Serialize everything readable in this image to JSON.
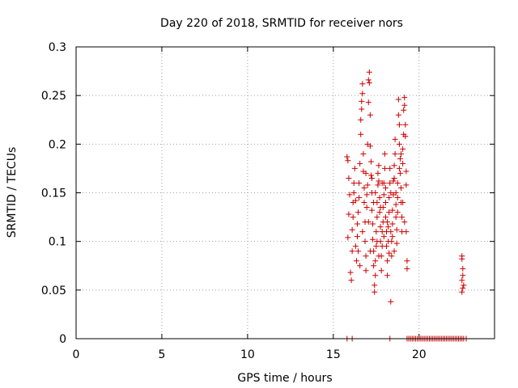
{
  "chart_data": {
    "type": "scatter",
    "title": "Day 220 of 2018, SRMTID for receiver nors",
    "xlabel": "GPS time / hours",
    "ylabel": "SRMTID / TECUs",
    "xlim": [
      0,
      24.4
    ],
    "ylim": [
      0,
      0.3
    ],
    "xticks": [
      0,
      5,
      10,
      15,
      20
    ],
    "xtick_labels": [
      "0",
      "5",
      "10",
      "15",
      "20"
    ],
    "yticks": [
      0,
      0.05,
      0.1,
      0.15,
      0.2,
      0.25,
      0.3
    ],
    "ytick_labels": [
      "0",
      "0.05",
      "0.1",
      "0.15",
      "0.2",
      "0.25",
      "0.3"
    ],
    "grid": true,
    "marker": "+",
    "color": "#cc0000",
    "series": [
      {
        "name": "SRMTID",
        "points": [
          [
            15.8,
            0.187
          ],
          [
            15.85,
            0.183
          ],
          [
            15.9,
            0.165
          ],
          [
            15.95,
            0.148
          ],
          [
            15.9,
            0.128
          ],
          [
            15.85,
            0.104
          ],
          [
            16.0,
            0.068
          ],
          [
            16.05,
            0.06
          ],
          [
            16.1,
            0.09
          ],
          [
            16.1,
            0.112
          ],
          [
            16.15,
            0.125
          ],
          [
            16.15,
            0.14
          ],
          [
            16.2,
            0.15
          ],
          [
            16.2,
            0.16
          ],
          [
            16.25,
            0.175
          ],
          [
            16.3,
            0.095
          ],
          [
            16.35,
            0.08
          ],
          [
            16.4,
            0.105
          ],
          [
            16.4,
            0.118
          ],
          [
            16.45,
            0.13
          ],
          [
            16.5,
            0.145
          ],
          [
            16.5,
            0.16
          ],
          [
            16.55,
            0.18
          ],
          [
            16.6,
            0.21
          ],
          [
            16.6,
            0.225
          ],
          [
            16.65,
            0.236
          ],
          [
            16.65,
            0.244
          ],
          [
            16.7,
            0.252
          ],
          [
            16.7,
            0.262
          ],
          [
            16.75,
            0.19
          ],
          [
            16.75,
            0.172
          ],
          [
            16.8,
            0.155
          ],
          [
            16.8,
            0.14
          ],
          [
            16.85,
            0.12
          ],
          [
            16.85,
            0.1
          ],
          [
            16.9,
            0.085
          ],
          [
            16.9,
            0.07
          ],
          [
            16.95,
            0.135
          ],
          [
            16.95,
            0.148
          ],
          [
            17.0,
            0.158
          ],
          [
            17.0,
            0.2
          ],
          [
            17.05,
            0.243
          ],
          [
            17.05,
            0.266
          ],
          [
            17.1,
            0.274
          ],
          [
            17.1,
            0.263
          ],
          [
            17.15,
            0.23
          ],
          [
            17.15,
            0.198
          ],
          [
            17.2,
            0.182
          ],
          [
            17.2,
            0.168
          ],
          [
            17.25,
            0.15
          ],
          [
            17.25,
            0.132
          ],
          [
            17.3,
            0.118
          ],
          [
            17.3,
            0.102
          ],
          [
            17.35,
            0.09
          ],
          [
            17.35,
            0.075
          ],
          [
            17.4,
            0.055
          ],
          [
            17.4,
            0.048
          ],
          [
            17.45,
            0.065
          ],
          [
            17.45,
            0.08
          ],
          [
            17.5,
            0.095
          ],
          [
            17.5,
            0.11
          ],
          [
            17.55,
            0.125
          ],
          [
            17.55,
            0.14
          ],
          [
            17.6,
            0.158
          ],
          [
            17.6,
            0.17
          ],
          [
            17.65,
            0.178
          ],
          [
            17.65,
            0.162
          ],
          [
            17.7,
            0.145
          ],
          [
            17.7,
            0.13
          ],
          [
            17.75,
            0.115
          ],
          [
            17.75,
            0.1
          ],
          [
            17.8,
            0.085
          ],
          [
            17.8,
            0.07
          ],
          [
            17.85,
            0.095
          ],
          [
            17.85,
            0.11
          ],
          [
            17.9,
            0.12
          ],
          [
            17.9,
            0.135
          ],
          [
            17.95,
            0.148
          ],
          [
            17.95,
            0.16
          ],
          [
            18.0,
            0.175
          ],
          [
            18.0,
            0.19
          ],
          [
            18.05,
            0.14
          ],
          [
            18.05,
            0.125
          ],
          [
            18.1,
            0.11
          ],
          [
            18.1,
            0.095
          ],
          [
            18.15,
            0.08
          ],
          [
            18.15,
            0.065
          ],
          [
            18.2,
            0.1
          ],
          [
            18.2,
            0.115
          ],
          [
            18.25,
            0.13
          ],
          [
            18.25,
            0.145
          ],
          [
            18.3,
            0.16
          ],
          [
            18.3,
            0.175
          ],
          [
            18.35,
            0.15
          ],
          [
            18.35,
            0.038
          ],
          [
            18.4,
            0.085
          ],
          [
            18.4,
            0.1
          ],
          [
            18.45,
            0.118
          ],
          [
            18.45,
            0.132
          ],
          [
            18.5,
            0.148
          ],
          [
            18.5,
            0.162
          ],
          [
            18.55,
            0.178
          ],
          [
            18.55,
            0.165
          ],
          [
            18.6,
            0.19
          ],
          [
            18.6,
            0.205
          ],
          [
            18.65,
            0.138
          ],
          [
            18.65,
            0.125
          ],
          [
            18.7,
            0.112
          ],
          [
            18.7,
            0.098
          ],
          [
            18.75,
            0.145
          ],
          [
            18.75,
            0.16
          ],
          [
            18.8,
            0.23
          ],
          [
            18.8,
            0.246
          ],
          [
            18.85,
            0.22
          ],
          [
            18.85,
            0.2
          ],
          [
            18.9,
            0.185
          ],
          [
            18.9,
            0.17
          ],
          [
            18.95,
            0.155
          ],
          [
            18.95,
            0.14
          ],
          [
            19.0,
            0.125
          ],
          [
            19.0,
            0.11
          ],
          [
            19.05,
            0.18
          ],
          [
            19.05,
            0.195
          ],
          [
            19.1,
            0.21
          ],
          [
            19.1,
            0.235
          ],
          [
            19.15,
            0.24
          ],
          [
            19.15,
            0.248
          ],
          [
            19.2,
            0.22
          ],
          [
            19.2,
            0.208
          ],
          [
            19.25,
            0.172
          ],
          [
            19.25,
            0.158
          ],
          [
            19.3,
            0.08
          ],
          [
            19.3,
            0.072
          ],
          [
            16.3,
            0.142
          ],
          [
            16.45,
            0.09
          ],
          [
            16.55,
            0.075
          ],
          [
            16.7,
            0.11
          ],
          [
            16.9,
            0.17
          ],
          [
            17.05,
            0.12
          ],
          [
            17.15,
            0.09
          ],
          [
            17.25,
            0.165
          ],
          [
            17.35,
            0.14
          ],
          [
            17.45,
            0.15
          ],
          [
            17.55,
            0.1
          ],
          [
            17.65,
            0.085
          ],
          [
            17.75,
            0.135
          ],
          [
            17.85,
            0.16
          ],
          [
            17.95,
            0.105
          ],
          [
            18.05,
            0.155
          ],
          [
            18.15,
            0.12
          ],
          [
            18.25,
            0.088
          ],
          [
            18.35,
            0.11
          ],
          [
            18.45,
            0.105
          ],
          [
            18.55,
            0.09
          ],
          [
            18.65,
            0.15
          ],
          [
            18.75,
            0.13
          ],
          [
            18.85,
            0.175
          ],
          [
            18.95,
            0.19
          ],
          [
            19.05,
            0.14
          ],
          [
            19.15,
            0.12
          ],
          [
            19.25,
            0.11
          ],
          [
            22.5,
            0.085
          ],
          [
            22.5,
            0.082
          ],
          [
            22.55,
            0.072
          ],
          [
            22.55,
            0.065
          ],
          [
            22.5,
            0.06
          ],
          [
            22.55,
            0.052
          ],
          [
            22.5,
            0.048
          ],
          [
            22.6,
            0.055
          ],
          [
            15.8,
            0
          ],
          [
            16.1,
            0
          ],
          [
            18.3,
            0
          ],
          [
            19.3,
            0
          ],
          [
            19.4,
            0
          ],
          [
            19.5,
            0
          ],
          [
            19.6,
            0
          ],
          [
            19.7,
            0
          ],
          [
            19.8,
            0
          ],
          [
            19.9,
            0
          ],
          [
            20.0,
            0
          ],
          [
            20.1,
            0
          ],
          [
            20.2,
            0
          ],
          [
            20.3,
            0
          ],
          [
            20.4,
            0
          ],
          [
            20.5,
            0
          ],
          [
            20.6,
            0
          ],
          [
            20.7,
            0
          ],
          [
            20.8,
            0
          ],
          [
            20.9,
            0
          ],
          [
            21.0,
            0
          ],
          [
            21.1,
            0
          ],
          [
            21.2,
            0
          ],
          [
            21.3,
            0
          ],
          [
            21.4,
            0
          ],
          [
            21.5,
            0
          ],
          [
            21.6,
            0
          ],
          [
            21.7,
            0
          ],
          [
            21.8,
            0
          ],
          [
            21.9,
            0
          ],
          [
            22.0,
            0
          ],
          [
            22.1,
            0
          ],
          [
            22.2,
            0
          ],
          [
            22.3,
            0
          ],
          [
            22.4,
            0
          ],
          [
            22.5,
            0
          ],
          [
            22.6,
            0
          ],
          [
            22.75,
            0
          ]
        ]
      }
    ]
  }
}
